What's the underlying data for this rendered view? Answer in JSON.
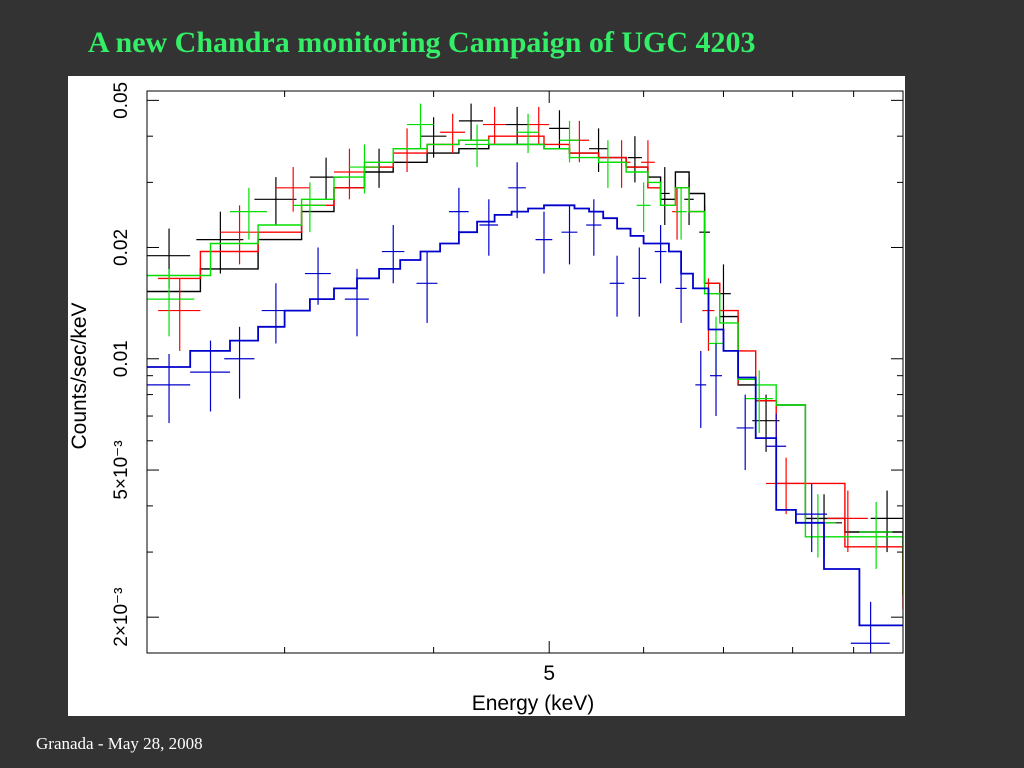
{
  "slide": {
    "title": "A new Chandra monitoring Campaign of UGC 4203",
    "footer": "Granada - May 28, 2008"
  },
  "chart_data": {
    "type": "line",
    "xlabel": "Energy (keV)",
    "ylabel": "Counts/sec/keV",
    "xscale": "log",
    "yscale": "log",
    "xlim": [
      2.3,
      9.9
    ],
    "ylim": [
      0.0016,
      0.053
    ],
    "x_tick_labels": [
      {
        "value": 5,
        "label": "5"
      }
    ],
    "y_tick_labels": [
      {
        "value": 0.05,
        "label": "0.05"
      },
      {
        "value": 0.02,
        "label": "0.02"
      },
      {
        "value": 0.01,
        "label": "0.01"
      },
      {
        "value": 0.005,
        "label": "5×10⁻³"
      },
      {
        "value": 0.002,
        "label": "2×10⁻³"
      }
    ],
    "grid": false,
    "legend": "none",
    "series": [
      {
        "color": "#000000",
        "model_edges": [
          2.3,
          2.55,
          2.85,
          3.1,
          3.3,
          3.5,
          3.7,
          3.95,
          4.2,
          4.45,
          4.7,
          4.95,
          5.2,
          5.5,
          5.8,
          6.05,
          6.2,
          6.38,
          6.55,
          6.75,
          6.95,
          7.2,
          7.45,
          7.75,
          8.2,
          8.85,
          9.9
        ],
        "model_values": [
          0.0152,
          0.0175,
          0.021,
          0.025,
          0.029,
          0.032,
          0.034,
          0.036,
          0.037,
          0.038,
          0.038,
          0.037,
          0.036,
          0.035,
          0.033,
          0.031,
          0.027,
          0.032,
          0.028,
          0.016,
          0.013,
          0.0085,
          0.0077,
          0.0075,
          0.0037,
          0.0034,
          0.0023
        ],
        "points": [
          {
            "x": 2.4,
            "xerr": 0.1,
            "y": 0.019,
            "yerr": 0.0035
          },
          {
            "x": 2.65,
            "xerr": 0.12,
            "y": 0.021,
            "yerr": 0.004
          },
          {
            "x": 2.95,
            "xerr": 0.12,
            "y": 0.027,
            "yerr": 0.004
          },
          {
            "x": 3.25,
            "xerr": 0.1,
            "y": 0.031,
            "yerr": 0.004
          },
          {
            "x": 3.6,
            "xerr": 0.1,
            "y": 0.033,
            "yerr": 0.004
          },
          {
            "x": 4.0,
            "xerr": 0.1,
            "y": 0.04,
            "yerr": 0.005
          },
          {
            "x": 4.3,
            "xerr": 0.1,
            "y": 0.044,
            "yerr": 0.005
          },
          {
            "x": 4.7,
            "xerr": 0.1,
            "y": 0.043,
            "yerr": 0.005
          },
          {
            "x": 5.1,
            "xerr": 0.1,
            "y": 0.042,
            "yerr": 0.005
          },
          {
            "x": 5.5,
            "xerr": 0.1,
            "y": 0.037,
            "yerr": 0.005
          },
          {
            "x": 5.9,
            "xerr": 0.08,
            "y": 0.035,
            "yerr": 0.005
          },
          {
            "x": 6.25,
            "xerr": 0.06,
            "y": 0.028,
            "yerr": 0.005
          },
          {
            "x": 6.55,
            "xerr": 0.06,
            "y": 0.027,
            "yerr": 0.004
          },
          {
            "x": 6.75,
            "xerr": 0.07,
            "y": 0.022,
            "yerr": 0.004
          },
          {
            "x": 7.0,
            "xerr": 0.1,
            "y": 0.015,
            "yerr": 0.003
          },
          {
            "x": 7.6,
            "xerr": 0.2,
            "y": 0.0068,
            "yerr": 0.0012
          },
          {
            "x": 8.5,
            "xerr": 0.3,
            "y": 0.0036,
            "yerr": 0.0007
          },
          {
            "x": 9.6,
            "xerr": 0.3,
            "y": 0.0037,
            "yerr": 0.0007
          }
        ]
      },
      {
        "color": "#ff0000",
        "model_edges": [
          2.35,
          2.55,
          2.85,
          3.1,
          3.3,
          3.5,
          3.7,
          3.95,
          4.2,
          4.45,
          4.7,
          4.95,
          5.2,
          5.5,
          5.8,
          6.05,
          6.2,
          6.38,
          6.55,
          6.75,
          6.95,
          7.2,
          7.45,
          7.75,
          8.2,
          8.85,
          9.9
        ],
        "model_values": [
          0.0165,
          0.0195,
          0.022,
          0.026,
          0.029,
          0.033,
          0.036,
          0.038,
          0.039,
          0.04,
          0.04,
          0.038,
          0.036,
          0.035,
          0.033,
          0.029,
          0.026,
          0.029,
          0.025,
          0.016,
          0.0135,
          0.0105,
          0.0077,
          0.0046,
          0.0046,
          0.0031,
          0.0021
        ],
        "points": [
          {
            "x": 2.45,
            "xerr": 0.1,
            "y": 0.0135,
            "yerr": 0.003
          },
          {
            "x": 2.75,
            "xerr": 0.1,
            "y": 0.022,
            "yerr": 0.004
          },
          {
            "x": 3.05,
            "xerr": 0.1,
            "y": 0.029,
            "yerr": 0.004
          },
          {
            "x": 3.4,
            "xerr": 0.1,
            "y": 0.032,
            "yerr": 0.005
          },
          {
            "x": 3.8,
            "xerr": 0.1,
            "y": 0.037,
            "yerr": 0.005
          },
          {
            "x": 4.15,
            "xerr": 0.1,
            "y": 0.041,
            "yerr": 0.005
          },
          {
            "x": 4.5,
            "xerr": 0.1,
            "y": 0.043,
            "yerr": 0.005
          },
          {
            "x": 4.9,
            "xerr": 0.1,
            "y": 0.043,
            "yerr": 0.005
          },
          {
            "x": 5.3,
            "xerr": 0.1,
            "y": 0.039,
            "yerr": 0.005
          },
          {
            "x": 5.75,
            "xerr": 0.1,
            "y": 0.034,
            "yerr": 0.005
          },
          {
            "x": 6.05,
            "xerr": 0.08,
            "y": 0.034,
            "yerr": 0.005
          },
          {
            "x": 6.4,
            "xerr": 0.06,
            "y": 0.025,
            "yerr": 0.004
          },
          {
            "x": 6.8,
            "xerr": 0.08,
            "y": 0.0135,
            "yerr": 0.003
          },
          {
            "x": 7.2,
            "xerr": 0.12,
            "y": 0.0105,
            "yerr": 0.002
          },
          {
            "x": 7.9,
            "xerr": 0.3,
            "y": 0.0046,
            "yerr": 0.0008
          },
          {
            "x": 8.9,
            "xerr": 0.35,
            "y": 0.0037,
            "yerr": 0.0007
          }
        ]
      },
      {
        "color": "#00e000",
        "model_edges": [
          2.3,
          2.6,
          2.85,
          3.1,
          3.3,
          3.5,
          3.7,
          3.95,
          4.2,
          4.45,
          4.7,
          4.95,
          5.2,
          5.5,
          5.8,
          6.05,
          6.2,
          6.38,
          6.55,
          6.75,
          6.95,
          7.2,
          7.45,
          7.75,
          8.2,
          8.85,
          9.9
        ],
        "model_values": [
          0.0168,
          0.0205,
          0.023,
          0.027,
          0.031,
          0.034,
          0.037,
          0.038,
          0.039,
          0.038,
          0.038,
          0.037,
          0.035,
          0.034,
          0.032,
          0.03,
          0.026,
          0.029,
          0.025,
          0.015,
          0.0125,
          0.0088,
          0.0085,
          0.0075,
          0.0033,
          0.0033,
          0.0023
        ],
        "points": [
          {
            "x": 2.4,
            "xerr": 0.12,
            "y": 0.0145,
            "yerr": 0.003
          },
          {
            "x": 2.8,
            "xerr": 0.1,
            "y": 0.025,
            "yerr": 0.004
          },
          {
            "x": 3.15,
            "xerr": 0.1,
            "y": 0.026,
            "yerr": 0.004
          },
          {
            "x": 3.5,
            "xerr": 0.1,
            "y": 0.033,
            "yerr": 0.005
          },
          {
            "x": 3.9,
            "xerr": 0.1,
            "y": 0.043,
            "yerr": 0.006
          },
          {
            "x": 4.35,
            "xerr": 0.1,
            "y": 0.038,
            "yerr": 0.005
          },
          {
            "x": 4.8,
            "xerr": 0.1,
            "y": 0.041,
            "yerr": 0.005
          },
          {
            "x": 5.2,
            "xerr": 0.1,
            "y": 0.039,
            "yerr": 0.005
          },
          {
            "x": 5.6,
            "xerr": 0.1,
            "y": 0.034,
            "yerr": 0.005
          },
          {
            "x": 6.0,
            "xerr": 0.08,
            "y": 0.026,
            "yerr": 0.004
          },
          {
            "x": 6.45,
            "xerr": 0.07,
            "y": 0.025,
            "yerr": 0.004
          },
          {
            "x": 6.9,
            "xerr": 0.1,
            "y": 0.011,
            "yerr": 0.002
          },
          {
            "x": 7.5,
            "xerr": 0.2,
            "y": 0.0078,
            "yerr": 0.0015
          },
          {
            "x": 8.4,
            "xerr": 0.3,
            "y": 0.0036,
            "yerr": 0.0007
          },
          {
            "x": 9.4,
            "xerr": 0.3,
            "y": 0.0034,
            "yerr": 0.0007
          }
        ]
      },
      {
        "color": "#0000cc",
        "model_edges": [
          2.3,
          2.5,
          2.7,
          2.85,
          3.0,
          3.15,
          3.3,
          3.45,
          3.6,
          3.75,
          3.9,
          4.05,
          4.2,
          4.35,
          4.5,
          4.65,
          4.8,
          4.95,
          5.1,
          5.25,
          5.4,
          5.55,
          5.7,
          5.85,
          6.0,
          6.15,
          6.3,
          6.45,
          6.6,
          6.8,
          7.0,
          7.2,
          7.45,
          7.75,
          8.05,
          8.5,
          9.1,
          9.9
        ],
        "model_values": [
          0.0095,
          0.0105,
          0.0112,
          0.0122,
          0.0135,
          0.0145,
          0.0155,
          0.0165,
          0.0175,
          0.0185,
          0.0195,
          0.0205,
          0.022,
          0.0235,
          0.0245,
          0.025,
          0.0255,
          0.026,
          0.026,
          0.0255,
          0.025,
          0.024,
          0.0225,
          0.0215,
          0.0205,
          0.0205,
          0.0195,
          0.017,
          0.0155,
          0.012,
          0.0105,
          0.0089,
          0.0061,
          0.0039,
          0.0036,
          0.0027,
          0.0019
        ],
        "points": [
          {
            "x": 2.4,
            "xerr": 0.1,
            "y": 0.0085,
            "yerr": 0.0018
          },
          {
            "x": 2.6,
            "xerr": 0.1,
            "y": 0.0092,
            "yerr": 0.002
          },
          {
            "x": 2.75,
            "xerr": 0.08,
            "y": 0.01,
            "yerr": 0.0022
          },
          {
            "x": 2.95,
            "xerr": 0.08,
            "y": 0.0135,
            "yerr": 0.0025
          },
          {
            "x": 3.2,
            "xerr": 0.08,
            "y": 0.017,
            "yerr": 0.003
          },
          {
            "x": 3.45,
            "xerr": 0.08,
            "y": 0.0145,
            "yerr": 0.003
          },
          {
            "x": 3.7,
            "xerr": 0.08,
            "y": 0.0195,
            "yerr": 0.0035
          },
          {
            "x": 3.95,
            "xerr": 0.08,
            "y": 0.016,
            "yerr": 0.0035
          },
          {
            "x": 4.2,
            "xerr": 0.08,
            "y": 0.025,
            "yerr": 0.004
          },
          {
            "x": 4.45,
            "xerr": 0.08,
            "y": 0.023,
            "yerr": 0.004
          },
          {
            "x": 4.7,
            "xerr": 0.08,
            "y": 0.029,
            "yerr": 0.005
          },
          {
            "x": 4.95,
            "xerr": 0.08,
            "y": 0.021,
            "yerr": 0.004
          },
          {
            "x": 5.2,
            "xerr": 0.08,
            "y": 0.022,
            "yerr": 0.004
          },
          {
            "x": 5.45,
            "xerr": 0.08,
            "y": 0.023,
            "yerr": 0.004
          },
          {
            "x": 5.7,
            "xerr": 0.08,
            "y": 0.016,
            "yerr": 0.003
          },
          {
            "x": 5.95,
            "xerr": 0.08,
            "y": 0.0165,
            "yerr": 0.0035
          },
          {
            "x": 6.2,
            "xerr": 0.07,
            "y": 0.0195,
            "yerr": 0.0035
          },
          {
            "x": 6.45,
            "xerr": 0.07,
            "y": 0.0155,
            "yerr": 0.003
          },
          {
            "x": 6.7,
            "xerr": 0.07,
            "y": 0.0085,
            "yerr": 0.002
          },
          {
            "x": 6.9,
            "xerr": 0.08,
            "y": 0.009,
            "yerr": 0.002
          },
          {
            "x": 7.3,
            "xerr": 0.12,
            "y": 0.0065,
            "yerr": 0.0015
          },
          {
            "x": 7.75,
            "xerr": 0.15,
            "y": 0.0058,
            "yerr": 0.0013
          },
          {
            "x": 8.3,
            "xerr": 0.25,
            "y": 0.0038,
            "yerr": 0.0008
          },
          {
            "x": 9.3,
            "xerr": 0.35,
            "y": 0.0017,
            "yerr": 0.0005
          }
        ]
      }
    ]
  }
}
